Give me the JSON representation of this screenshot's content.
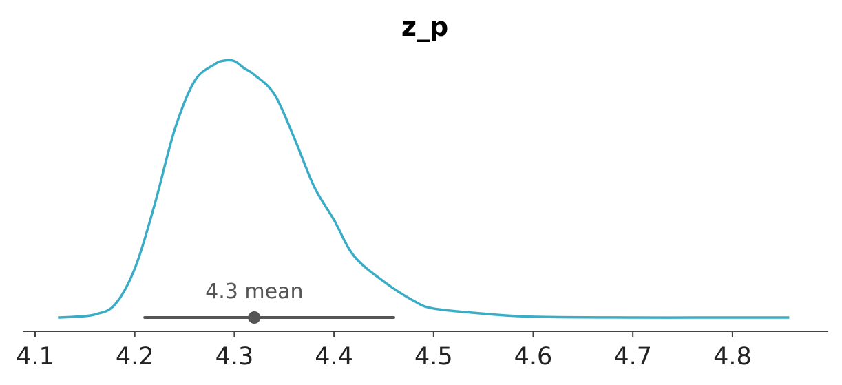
{
  "chart_data": {
    "type": "line",
    "title": "z_p",
    "xlabel": "",
    "ylabel": "",
    "xlim": [
      4.1,
      4.9
    ],
    "x_ticks": [
      "4.1",
      "4.2",
      "4.3",
      "4.4",
      "4.5",
      "4.6",
      "4.7",
      "4.8"
    ],
    "y_axis_visible": false,
    "grid": false,
    "colors": {
      "density": "#3aacc6",
      "interval": "#555555",
      "axis": "#444444"
    },
    "series": [
      {
        "x": [
          4.123,
          4.14,
          4.16,
          4.18,
          4.2,
          4.22,
          4.24,
          4.26,
          4.28,
          4.29,
          4.3,
          4.31,
          4.32,
          4.34,
          4.36,
          4.38,
          4.4,
          4.42,
          4.45,
          4.48,
          4.5,
          4.55,
          4.6,
          4.7,
          4.8,
          4.857
        ],
        "y": [
          0.0,
          0.003,
          0.012,
          0.05,
          0.19,
          0.44,
          0.73,
          0.92,
          0.985,
          1.0,
          0.998,
          0.97,
          0.945,
          0.87,
          0.7,
          0.51,
          0.38,
          0.24,
          0.14,
          0.065,
          0.035,
          0.015,
          0.003,
          0.0,
          0.0,
          0.0
        ]
      }
    ],
    "point_estimate": {
      "value": 4.32,
      "label": "4.3 mean"
    },
    "hdi": [
      4.21,
      4.46
    ]
  }
}
